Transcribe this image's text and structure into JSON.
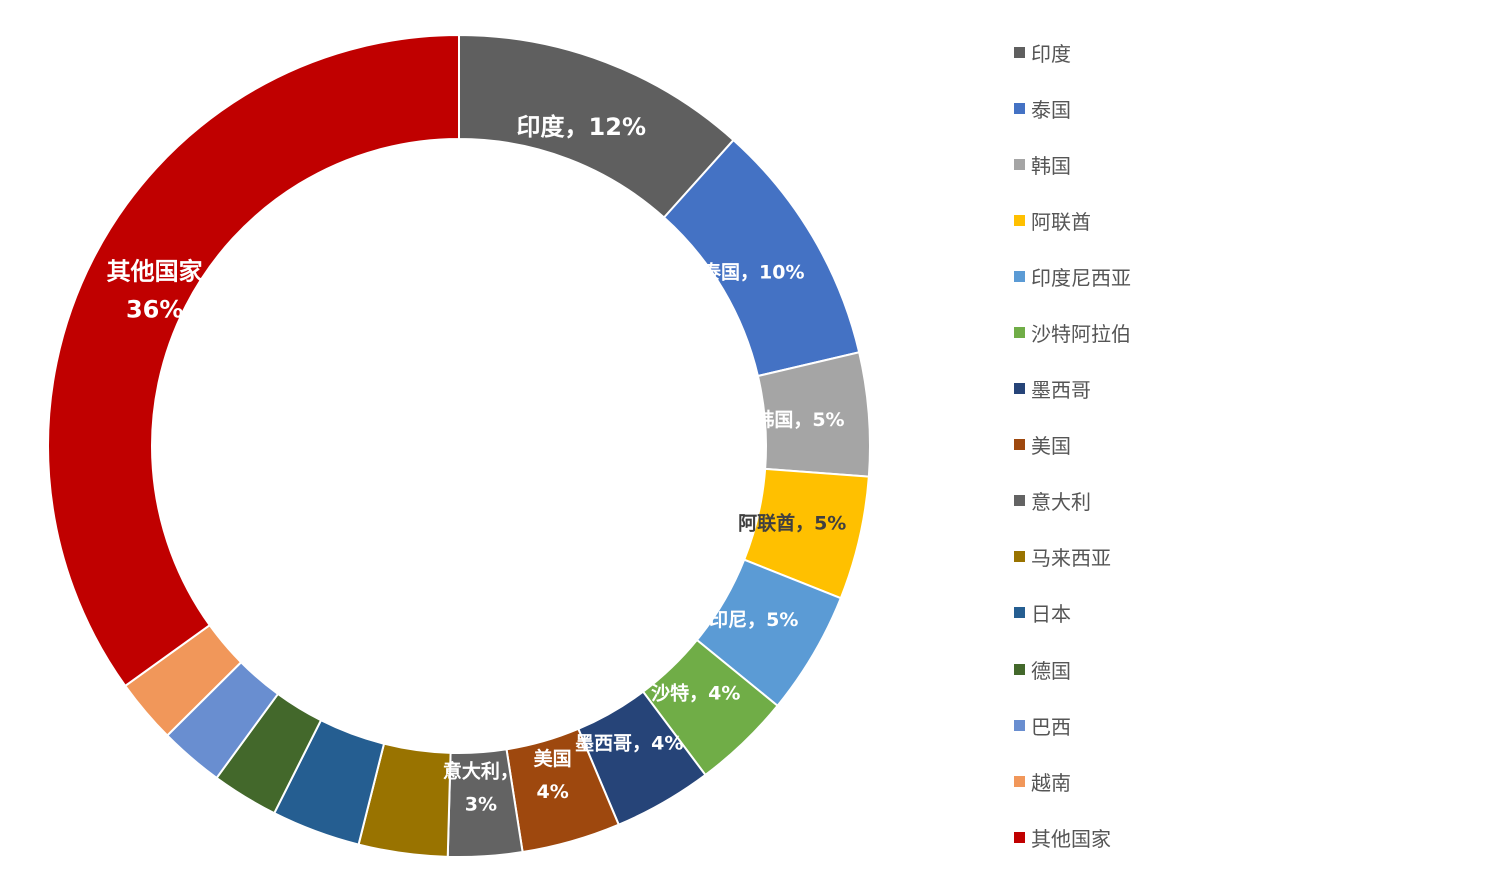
{
  "chart_data": {
    "type": "pie",
    "style": "donut",
    "legend_position": "right",
    "slices": [
      {
        "name": "印度",
        "value": 12,
        "color": "#5f5f5f",
        "label_lines": [
          "印度，12%"
        ],
        "label_color": "#ffffff"
      },
      {
        "name": "泰国",
        "value": 10,
        "color": "#4472c4",
        "label_lines": [
          "泰国，10%"
        ],
        "label_color": "#ffffff"
      },
      {
        "name": "韩国",
        "value": 5,
        "color": "#a5a5a5",
        "label_lines": [
          "韩国，5%"
        ],
        "label_color": "#ffffff"
      },
      {
        "name": "阿联酋",
        "value": 5,
        "color": "#ffc000",
        "label_lines": [
          "阿联酋，5%"
        ],
        "label_color": "#404040"
      },
      {
        "name": "印度尼西亚",
        "value": 5,
        "color": "#5b9bd5",
        "label_lines": [
          "印尼，5%"
        ],
        "label_color": "#ffffff"
      },
      {
        "name": "沙特阿拉伯",
        "value": 4,
        "color": "#70ad47",
        "label_lines": [
          "沙特，4%"
        ],
        "label_color": "#ffffff"
      },
      {
        "name": "墨西哥",
        "value": 4,
        "color": "#264478",
        "label_lines": [
          "墨西哥，4%"
        ],
        "label_color": "#ffffff"
      },
      {
        "name": "美国",
        "value": 4,
        "color": "#9e480e",
        "label_lines": [
          "美国",
          "4%"
        ],
        "label_color": "#ffffff"
      },
      {
        "name": "意大利",
        "value": 3,
        "color": "#636363",
        "label_lines": [
          "意大利，",
          "3%"
        ],
        "label_color": "#ffffff"
      },
      {
        "name": "马来西亚",
        "value": 3.6,
        "color": "#997300",
        "label_lines": [],
        "label_color": "#ffffff"
      },
      {
        "name": "日本",
        "value": 3.6,
        "color": "#255e91",
        "label_lines": [],
        "label_color": "#ffffff"
      },
      {
        "name": "德国",
        "value": 2.7,
        "color": "#43682b",
        "label_lines": [],
        "label_color": "#ffffff"
      },
      {
        "name": "巴西",
        "value": 2.6,
        "color": "#698ed0",
        "label_lines": [],
        "label_color": "#ffffff"
      },
      {
        "name": "越南",
        "value": 2.6,
        "color": "#f1975a",
        "label_lines": [],
        "label_color": "#ffffff"
      },
      {
        "name": "其他国家",
        "value": 36,
        "color": "#c00000",
        "label_lines": [
          "其他国家",
          "36%"
        ],
        "label_color": "#ffffff"
      }
    ]
  }
}
